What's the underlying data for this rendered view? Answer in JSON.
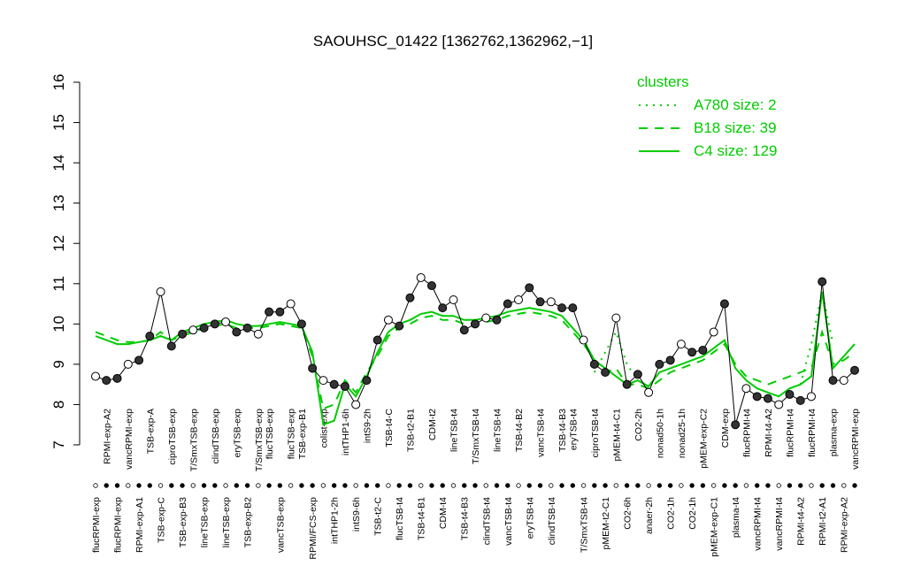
{
  "chart_data": {
    "type": "line",
    "title": "SAOUHSC_01422 [1362762,1362962,−1]",
    "categories": [
      "flucRPMI-exp",
      "RPMI-exp-A2",
      "flucRPMI-exp",
      "vancRPMI-exp",
      "RPMI-exp-A1",
      "TSB-exp-A",
      "TSB-exp-C",
      "ciproTSB-exp",
      "TSB-exp-B3",
      "T/SmxTSB-exp",
      "lineTSB-exp",
      "clindTSB-exp",
      "lineTSB-exp",
      "eryTSB-exp",
      "TSB-exp-B2",
      "T/SmxTSB-exp",
      "flucTSB-exp",
      "vancTSB-exp",
      "flucTSB-exp",
      "TSB-exp-B1",
      "RPMI/FCS-exp",
      "colist-exp",
      "intTHP1-2h",
      "intTHP1-6h",
      "intS9-6h",
      "intS9-2h",
      "TSB-t2-C",
      "TSB-t4-C",
      "flucTSB-t4",
      "TSB-t2-B1",
      "TSB-t4-B1",
      "CDM-t2",
      "CDM-t4",
      "lineTSB-t4",
      "TSB-t4-B3",
      "T/SmxTSB-t4",
      "clindTSB-t4",
      "lineTSB-t4",
      "vancTSB-t4",
      "TSB-t4-B2",
      "eryTSB-t4",
      "vancTSB-t4",
      "clindTSB-t4",
      "TSB-t4-B3",
      "eryTSB-t4",
      "T/SmxTSB-t4",
      "ciproTSB-t4",
      "pMEM-t2-C1",
      "pMEM-t4-C1",
      "CO2-6h",
      "CO2-2h",
      "anaer-2h",
      "nonad50-1h",
      "CO2-1h",
      "nonad25-1h",
      "CO2-1h",
      "pMEM-exp-C2",
      "pMEM-exp-C1",
      "CDM-exp",
      "plasma-t4",
      "flucRPMI-t4",
      "vancRPMI-t4",
      "RPMI-t4-A2",
      "vancRPMI-t4",
      "flucRPMI-t4",
      "RPMI-t4-A2",
      "flucRPMI-t4",
      "RPMI-t2-A1",
      "plasma-exp",
      "RPMI-exp-A2",
      "vancRPMI-exp"
    ],
    "values": [
      8.7,
      8.6,
      8.65,
      9.0,
      9.1,
      9.7,
      10.8,
      9.45,
      9.75,
      9.85,
      9.9,
      10.0,
      10.05,
      9.8,
      9.9,
      9.75,
      10.3,
      10.3,
      10.5,
      10.0,
      8.9,
      8.6,
      8.5,
      8.45,
      8.0,
      8.6,
      9.6,
      10.1,
      9.95,
      10.65,
      11.15,
      10.95,
      10.4,
      10.6,
      9.85,
      10.0,
      10.15,
      10.1,
      10.5,
      10.6,
      10.9,
      10.55,
      10.55,
      10.4,
      10.4,
      9.6,
      9.0,
      8.8,
      10.15,
      8.5,
      8.75,
      8.3,
      9.0,
      9.1,
      9.5,
      9.3,
      9.35,
      9.8,
      10.5,
      7.5,
      8.4,
      8.2,
      8.15,
      8.0,
      8.25,
      8.1,
      8.2,
      11.05,
      8.6,
      8.6,
      8.85
    ],
    "color": "#000000",
    "legend_title": "clusters",
    "series": [
      {
        "name": "A780 size: 2",
        "color": "#00cc00",
        "linestyle": "dotted",
        "values": [
          null,
          null,
          null,
          null,
          null,
          null,
          null,
          null,
          null,
          null,
          null,
          null,
          null,
          null,
          null,
          null,
          null,
          null,
          null,
          null,
          null,
          null,
          null,
          null,
          null,
          null,
          null,
          null,
          null,
          null,
          null,
          null,
          null,
          null,
          null,
          null,
          null,
          null,
          null,
          null,
          null,
          null,
          null,
          null,
          null,
          null,
          8.8,
          9.3,
          9.8,
          9.0,
          8.6,
          null,
          null,
          null,
          null,
          null,
          null,
          null,
          null,
          null,
          null,
          null,
          null,
          null,
          null,
          8.5,
          9.5,
          10.8,
          9.5,
          null,
          null
        ]
      },
      {
        "name": "B18 size: 39",
        "color": "#00cc00",
        "linestyle": "dashed",
        "values": [
          9.8,
          9.7,
          9.6,
          9.55,
          9.55,
          9.6,
          9.8,
          9.6,
          9.7,
          9.8,
          9.9,
          9.95,
          10.0,
          9.9,
          9.9,
          9.9,
          9.95,
          10.0,
          9.95,
          9.9,
          9.2,
          7.9,
          8.0,
          8.6,
          8.3,
          8.8,
          9.2,
          9.7,
          9.9,
          10.0,
          10.15,
          10.2,
          10.1,
          10.1,
          10.0,
          10.0,
          10.05,
          10.1,
          10.2,
          10.25,
          10.3,
          10.25,
          10.2,
          10.1,
          9.8,
          9.5,
          9.1,
          8.8,
          8.9,
          8.5,
          8.5,
          8.4,
          8.6,
          8.8,
          8.9,
          9.0,
          9.1,
          9.3,
          9.5,
          9.0,
          8.7,
          8.6,
          8.5,
          8.6,
          8.7,
          8.8,
          8.9,
          9.8,
          9.0,
          9.1,
          9.3
        ]
      },
      {
        "name": "C4 size: 129",
        "color": "#00cc00",
        "linestyle": "solid",
        "values": [
          9.7,
          9.6,
          9.5,
          9.5,
          9.55,
          9.6,
          9.7,
          9.6,
          9.8,
          9.9,
          10.0,
          10.05,
          10.1,
          10.0,
          9.95,
          9.95,
          10.0,
          10.05,
          10.0,
          9.95,
          9.3,
          7.5,
          7.6,
          8.5,
          8.2,
          8.7,
          9.3,
          9.8,
          10.0,
          10.1,
          10.25,
          10.3,
          10.2,
          10.2,
          10.1,
          10.1,
          10.15,
          10.2,
          10.3,
          10.35,
          10.4,
          10.35,
          10.3,
          10.2,
          9.9,
          9.6,
          9.1,
          8.9,
          8.7,
          8.5,
          8.6,
          8.45,
          8.8,
          8.9,
          9.0,
          9.1,
          9.2,
          9.4,
          9.6,
          8.9,
          8.6,
          8.4,
          8.3,
          8.2,
          8.4,
          8.5,
          8.7,
          10.8,
          8.9,
          9.2,
          9.5
        ]
      }
    ],
    "ylim": [
      7,
      16
    ],
    "yticks": [
      7,
      8,
      9,
      10,
      11,
      12,
      13,
      14,
      15,
      16
    ],
    "legend": "top-right"
  }
}
